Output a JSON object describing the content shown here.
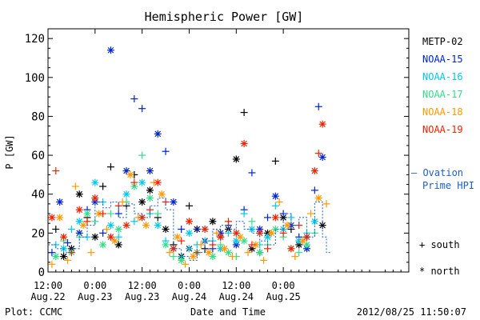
{
  "chart_data": {
    "type": "scatter",
    "title": "Hemispheric Power [GW]",
    "ylabel": "P [GW]",
    "xlabel": "Date and Time",
    "ylim": [
      0,
      125
    ],
    "yticks": [
      0,
      20,
      40,
      60,
      80,
      100,
      120
    ],
    "x_unit": "hours since 2012-08-22 12:00 UT",
    "xlim": [
      0,
      92
    ],
    "xticks": [
      {
        "x": 0,
        "time": "12:00",
        "date": "Aug.22"
      },
      {
        "x": 12,
        "time": "0:00",
        "date": "Aug.23"
      },
      {
        "x": 24,
        "time": "12:00",
        "date": "Aug.23"
      },
      {
        "x": 36,
        "time": "0:00",
        "date": "Aug.24"
      },
      {
        "x": 48,
        "time": "12:00",
        "date": "Aug.24"
      },
      {
        "x": 60,
        "time": "0:00",
        "date": "Aug.25"
      }
    ],
    "plot_credit": "Plot: CCMC",
    "timestamp": "2012/08/25 11:50:07",
    "legend": {
      "placement": "right",
      "series": [
        {
          "name": "METP-02",
          "color": "#000000"
        },
        {
          "name": "NOAA-15",
          "color": "#0022cc"
        },
        {
          "name": "NOAA-16",
          "color": "#00c8e8"
        },
        {
          "name": "NOAA-17",
          "color": "#33dd88"
        },
        {
          "name": "NOAA-18",
          "color": "#ff9900"
        },
        {
          "name": "NOAA-19",
          "color": "#ee2200"
        }
      ],
      "ovation_label_1": "– Ovation",
      "ovation_label_2": "Prime HPI",
      "ovation_color": "#1a5fcc",
      "south_label": "+ south",
      "north_label": "* north"
    },
    "series": [
      {
        "name": "METP-02",
        "color": "#000000",
        "points": [
          [
            2,
            22,
            "s"
          ],
          [
            4,
            8,
            "n"
          ],
          [
            6,
            12,
            "n"
          ],
          [
            8,
            40,
            "n"
          ],
          [
            10,
            28,
            "s"
          ],
          [
            12,
            18,
            "n"
          ],
          [
            14,
            44,
            "s"
          ],
          [
            16,
            54,
            "s"
          ],
          [
            18,
            14,
            "n"
          ],
          [
            20,
            34,
            "s"
          ],
          [
            22,
            50,
            "s"
          ],
          [
            24,
            36,
            "n"
          ],
          [
            26,
            42,
            "n"
          ],
          [
            28,
            28,
            "s"
          ],
          [
            30,
            22,
            "n"
          ],
          [
            32,
            14,
            "s"
          ],
          [
            34,
            8,
            "n"
          ],
          [
            36,
            34,
            "s"
          ],
          [
            38,
            22,
            "n"
          ],
          [
            40,
            12,
            "s"
          ],
          [
            42,
            26,
            "n"
          ],
          [
            44,
            18,
            "s"
          ],
          [
            46,
            22,
            "n"
          ],
          [
            48,
            58,
            "n"
          ],
          [
            50,
            82,
            "s"
          ],
          [
            52,
            12,
            "n"
          ],
          [
            54,
            10,
            "s"
          ],
          [
            56,
            20,
            "n"
          ],
          [
            58,
            57,
            "s"
          ],
          [
            60,
            28,
            "n"
          ],
          [
            62,
            22,
            "s"
          ],
          [
            64,
            14,
            "n"
          ],
          [
            66,
            18,
            "s"
          ],
          [
            70,
            24,
            "n"
          ]
        ]
      },
      {
        "name": "NOAA-15",
        "color": "#0022cc",
        "points": [
          [
            1,
            10,
            "s"
          ],
          [
            3,
            36,
            "n"
          ],
          [
            5,
            15,
            "s"
          ],
          [
            8,
            20,
            "n"
          ],
          [
            10,
            32,
            "s"
          ],
          [
            12,
            36,
            "n"
          ],
          [
            14,
            20,
            "s"
          ],
          [
            16,
            114,
            "n"
          ],
          [
            18,
            30,
            "s"
          ],
          [
            20,
            52,
            "n"
          ],
          [
            22,
            89,
            "s"
          ],
          [
            24,
            84,
            "s"
          ],
          [
            26,
            52,
            "n"
          ],
          [
            28,
            71,
            "n"
          ],
          [
            30,
            62,
            "s"
          ],
          [
            32,
            36,
            "n"
          ],
          [
            34,
            22,
            "s"
          ],
          [
            36,
            12,
            "n"
          ],
          [
            38,
            22,
            "s"
          ],
          [
            40,
            16,
            "n"
          ],
          [
            42,
            12,
            "s"
          ],
          [
            44,
            20,
            "n"
          ],
          [
            46,
            24,
            "s"
          ],
          [
            48,
            14,
            "n"
          ],
          [
            50,
            32,
            "s"
          ],
          [
            52,
            51,
            "s"
          ],
          [
            54,
            22,
            "n"
          ],
          [
            56,
            28,
            "s"
          ],
          [
            58,
            39,
            "n"
          ],
          [
            60,
            30,
            "s"
          ],
          [
            62,
            24,
            "n"
          ],
          [
            64,
            18,
            "s"
          ],
          [
            66,
            12,
            "n"
          ],
          [
            68,
            42,
            "s"
          ],
          [
            69,
            85,
            "s"
          ],
          [
            70,
            59,
            "n"
          ]
        ]
      },
      {
        "name": "NOAA-16",
        "color": "#00c8e8",
        "points": [
          [
            2,
            14,
            "s"
          ],
          [
            4,
            12,
            "n"
          ],
          [
            6,
            22,
            "s"
          ],
          [
            8,
            26,
            "n"
          ],
          [
            10,
            18,
            "s"
          ],
          [
            12,
            46,
            "n"
          ],
          [
            14,
            36,
            "s"
          ],
          [
            16,
            24,
            "n"
          ],
          [
            18,
            18,
            "s"
          ],
          [
            20,
            40,
            "n"
          ],
          [
            22,
            26,
            "s"
          ],
          [
            24,
            46,
            "n"
          ],
          [
            26,
            30,
            "s"
          ],
          [
            28,
            24,
            "n"
          ],
          [
            30,
            16,
            "s"
          ],
          [
            32,
            12,
            "n"
          ],
          [
            34,
            8,
            "s"
          ],
          [
            36,
            20,
            "n"
          ],
          [
            38,
            14,
            "s"
          ],
          [
            40,
            22,
            "n"
          ],
          [
            42,
            16,
            "s"
          ],
          [
            44,
            12,
            "n"
          ],
          [
            46,
            20,
            "s"
          ],
          [
            48,
            16,
            "n"
          ],
          [
            50,
            30,
            "s"
          ],
          [
            52,
            22,
            "n"
          ],
          [
            54,
            14,
            "s"
          ],
          [
            56,
            18,
            "n"
          ],
          [
            58,
            34,
            "s"
          ],
          [
            60,
            22,
            "n"
          ],
          [
            62,
            28,
            "s"
          ],
          [
            64,
            16,
            "n"
          ],
          [
            66,
            20,
            "s"
          ],
          [
            68,
            26,
            "n"
          ]
        ]
      },
      {
        "name": "NOAA-17",
        "color": "#33dd88",
        "points": [
          [
            2,
            8,
            "n"
          ],
          [
            4,
            16,
            "s"
          ],
          [
            6,
            10,
            "n"
          ],
          [
            8,
            18,
            "s"
          ],
          [
            10,
            30,
            "n"
          ],
          [
            12,
            26,
            "s"
          ],
          [
            14,
            14,
            "n"
          ],
          [
            16,
            30,
            "s"
          ],
          [
            18,
            22,
            "n"
          ],
          [
            20,
            36,
            "s"
          ],
          [
            22,
            44,
            "n"
          ],
          [
            24,
            60,
            "s"
          ],
          [
            26,
            38,
            "n"
          ],
          [
            28,
            30,
            "s"
          ],
          [
            30,
            14,
            "n"
          ],
          [
            32,
            8,
            "s"
          ],
          [
            34,
            6,
            "n"
          ],
          [
            36,
            12,
            "s"
          ],
          [
            38,
            10,
            "n"
          ],
          [
            40,
            16,
            "s"
          ],
          [
            42,
            8,
            "n"
          ],
          [
            44,
            14,
            "s"
          ],
          [
            46,
            10,
            "n"
          ],
          [
            48,
            8,
            "s"
          ],
          [
            50,
            16,
            "n"
          ],
          [
            52,
            26,
            "s"
          ],
          [
            54,
            10,
            "n"
          ],
          [
            56,
            14,
            "s"
          ],
          [
            58,
            22,
            "n"
          ],
          [
            60,
            18,
            "s"
          ],
          [
            62,
            12,
            "n"
          ],
          [
            64,
            10,
            "s"
          ],
          [
            66,
            14,
            "n"
          ],
          [
            68,
            20,
            "s"
          ]
        ]
      },
      {
        "name": "NOAA-18",
        "color": "#ff9900",
        "points": [
          [
            1,
            4,
            "s"
          ],
          [
            3,
            28,
            "n"
          ],
          [
            5,
            6,
            "s"
          ],
          [
            7,
            44,
            "s"
          ],
          [
            9,
            24,
            "n"
          ],
          [
            11,
            10,
            "s"
          ],
          [
            13,
            30,
            "n"
          ],
          [
            15,
            22,
            "s"
          ],
          [
            17,
            16,
            "n"
          ],
          [
            19,
            36,
            "s"
          ],
          [
            21,
            50,
            "n"
          ],
          [
            23,
            28,
            "s"
          ],
          [
            25,
            24,
            "n"
          ],
          [
            27,
            46,
            "s"
          ],
          [
            29,
            40,
            "n"
          ],
          [
            31,
            10,
            "s"
          ],
          [
            33,
            18,
            "n"
          ],
          [
            35,
            4,
            "s"
          ],
          [
            37,
            8,
            "n"
          ],
          [
            39,
            14,
            "s"
          ],
          [
            41,
            10,
            "n"
          ],
          [
            43,
            20,
            "s"
          ],
          [
            45,
            12,
            "n"
          ],
          [
            47,
            8,
            "s"
          ],
          [
            49,
            18,
            "n"
          ],
          [
            51,
            10,
            "s"
          ],
          [
            53,
            14,
            "n"
          ],
          [
            55,
            6,
            "s"
          ],
          [
            57,
            20,
            "n"
          ],
          [
            59,
            36,
            "s"
          ],
          [
            61,
            24,
            "n"
          ],
          [
            63,
            8,
            "s"
          ],
          [
            65,
            16,
            "n"
          ],
          [
            67,
            30,
            "s"
          ],
          [
            69,
            38,
            "n"
          ],
          [
            71,
            35,
            "s"
          ]
        ]
      },
      {
        "name": "NOAA-19",
        "color": "#ee2200",
        "points": [
          [
            1,
            28,
            "n"
          ],
          [
            2,
            52,
            "s"
          ],
          [
            4,
            18,
            "n"
          ],
          [
            6,
            10,
            "s"
          ],
          [
            8,
            32,
            "n"
          ],
          [
            10,
            26,
            "s"
          ],
          [
            12,
            38,
            "n"
          ],
          [
            14,
            30,
            "s"
          ],
          [
            16,
            18,
            "n"
          ],
          [
            18,
            34,
            "s"
          ],
          [
            20,
            24,
            "n"
          ],
          [
            22,
            46,
            "s"
          ],
          [
            24,
            28,
            "n"
          ],
          [
            26,
            32,
            "s"
          ],
          [
            28,
            46,
            "n"
          ],
          [
            30,
            36,
            "s"
          ],
          [
            32,
            12,
            "n"
          ],
          [
            34,
            16,
            "s"
          ],
          [
            36,
            26,
            "n"
          ],
          [
            38,
            10,
            "s"
          ],
          [
            40,
            22,
            "n"
          ],
          [
            42,
            14,
            "s"
          ],
          [
            44,
            18,
            "n"
          ],
          [
            46,
            26,
            "s"
          ],
          [
            48,
            20,
            "n"
          ],
          [
            50,
            66,
            "n"
          ],
          [
            52,
            14,
            "s"
          ],
          [
            54,
            20,
            "n"
          ],
          [
            56,
            12,
            "s"
          ],
          [
            58,
            28,
            "n"
          ],
          [
            60,
            20,
            "s"
          ],
          [
            62,
            12,
            "n"
          ],
          [
            64,
            24,
            "s"
          ],
          [
            66,
            18,
            "n"
          ],
          [
            68,
            52,
            "n"
          ],
          [
            69,
            61,
            "s"
          ],
          [
            70,
            76,
            "n"
          ]
        ]
      },
      {
        "name": "Ovation Prime HPI",
        "color": "#1a5fcc",
        "type": "step",
        "points": [
          [
            0,
            14
          ],
          [
            2,
            12
          ],
          [
            4,
            10
          ],
          [
            6,
            12
          ],
          [
            8,
            18
          ],
          [
            10,
            24
          ],
          [
            12,
            36
          ],
          [
            14,
            33
          ],
          [
            16,
            36
          ],
          [
            18,
            28
          ],
          [
            20,
            35
          ],
          [
            22,
            30
          ],
          [
            24,
            28
          ],
          [
            26,
            34
          ],
          [
            28,
            38
          ],
          [
            30,
            32
          ],
          [
            32,
            12
          ],
          [
            34,
            8
          ],
          [
            36,
            6
          ],
          [
            38,
            10
          ],
          [
            40,
            16
          ],
          [
            42,
            22
          ],
          [
            44,
            24
          ],
          [
            46,
            22
          ],
          [
            48,
            26
          ],
          [
            50,
            22
          ],
          [
            52,
            20
          ],
          [
            54,
            16
          ],
          [
            56,
            14
          ],
          [
            58,
            22
          ],
          [
            60,
            30
          ],
          [
            62,
            24
          ],
          [
            64,
            28
          ],
          [
            66,
            18
          ],
          [
            68,
            36
          ],
          [
            70,
            18
          ],
          [
            71,
            10
          ],
          [
            72,
            10
          ]
        ]
      }
    ]
  }
}
